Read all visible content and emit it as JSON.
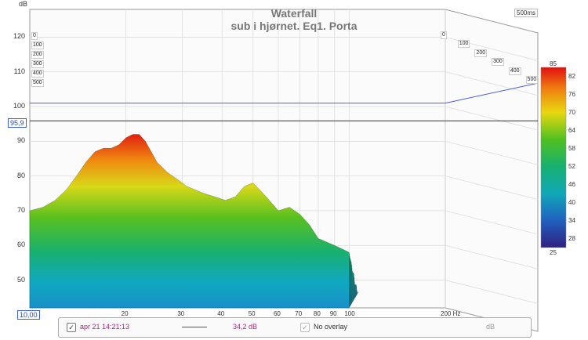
{
  "chart_data": {
    "type": "area",
    "title": "Waterfall",
    "subtitle": "sub i hjørnet. Eq1. Porta",
    "ylabel": "dB",
    "xlabel": "Hz",
    "x_scale": "log",
    "xlim": [
      10,
      200
    ],
    "ylim": [
      42,
      128
    ],
    "y_ticks": [
      50,
      60,
      70,
      80,
      90,
      100,
      110,
      120
    ],
    "x_ticks": [
      {
        "value": 20,
        "label": "20"
      },
      {
        "value": 30,
        "label": "30"
      },
      {
        "value": 40,
        "label": "40"
      },
      {
        "value": 50,
        "label": "50"
      },
      {
        "value": 60,
        "label": "60"
      },
      {
        "value": 70,
        "label": "70"
      },
      {
        "value": 80,
        "label": "80"
      },
      {
        "value": 90,
        "label": "90"
      },
      {
        "value": 100,
        "label": "100"
      },
      {
        "value": 200,
        "label": "200 Hz"
      }
    ],
    "x_min_label": "10,00",
    "y_marker": {
      "value": 95.9,
      "label": "95,9"
    },
    "time_axis_label": "500ms",
    "depth_labels": [
      "0",
      "100",
      "200",
      "300",
      "400",
      "500"
    ],
    "blue_line_level": 101,
    "front_slice": {
      "x": [
        10,
        11,
        12,
        13,
        14,
        15,
        16,
        17,
        18,
        19,
        20,
        21,
        22,
        23,
        24,
        25,
        27,
        29,
        31,
        33,
        35,
        38,
        41,
        44,
        47,
        50,
        55,
        60,
        65,
        70,
        75,
        80,
        90,
        100
      ],
      "y": [
        70,
        71,
        73,
        76,
        80,
        84,
        87,
        88,
        88,
        89,
        91,
        92,
        92,
        90,
        87,
        84,
        81,
        79,
        77,
        76,
        75,
        74,
        73,
        74,
        77,
        78,
        74,
        70,
        71,
        69,
        66,
        62,
        60,
        58
      ]
    },
    "colorbar": {
      "min": 25,
      "max": 85,
      "ticks": [
        82,
        76,
        70,
        64,
        58,
        52,
        46,
        40,
        34,
        28
      ],
      "min_label": "25",
      "max_label": "85"
    }
  },
  "legend": {
    "trace_checked": true,
    "trace_label": "apr 21 14:21:13",
    "trace_value": "34,2 dB",
    "trace_color": "#b0207f",
    "overlay_checked": true,
    "overlay_label": "No overlay",
    "unit": "dB"
  }
}
